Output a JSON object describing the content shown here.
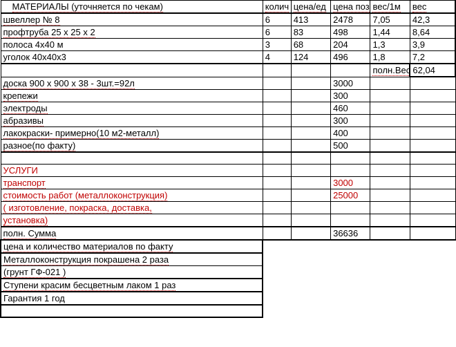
{
  "headers": {
    "materials": "МАТЕРИАЛЫ (уточняется по чекам)",
    "qty": "колич",
    "price": "цена/ед",
    "total": "цена поз-ц",
    "weight_1m": "вес/1м",
    "weight": "вес"
  },
  "materials": [
    {
      "name": "швеллер № 8",
      "qty": "6",
      "price": "413",
      "total": "2478",
      "w1": "7,05",
      "w": "42,3"
    },
    {
      "name": "профтруба 25 х 25 х 2",
      "qty": "6",
      "price": "83",
      "total": "498",
      "w1": "1,44",
      "w": "8,64"
    },
    {
      "name": "полоса          4х40    м",
      "qty": "3",
      "price": "68",
      "total": "204",
      "w1": "1,3",
      "w": "3,9"
    },
    {
      "name": "уголок   40х40х3",
      "qty": "4",
      "price": "124",
      "total": "496",
      "w1": "1,8",
      "w": "7,2"
    }
  ],
  "weight_summary": {
    "label": "полн.Вес",
    "value": "62,04"
  },
  "materials2": [
    {
      "name": "доска 900 х 900 х 38  - 3шт.=92л",
      "total": "3000"
    },
    {
      "name": "крепежи",
      "total": "300"
    },
    {
      "name": "электроды",
      "total": "460"
    },
    {
      "name": "абразивы",
      "total": "300"
    },
    {
      "name": "лакокраски- примерно(10 м2-металл)",
      "total": "400"
    },
    {
      "name": "разное(по факту)",
      "total": "500"
    }
  ],
  "services_header": " УСЛУГИ",
  "services": [
    {
      "name": "транспорт",
      "total": "3000"
    },
    {
      "name": "стоимость работ (металлоконструкция)",
      "total": "25000"
    },
    {
      "name": "( изготовление, покраска, доставка,",
      "total": ""
    },
    {
      "name": "установка)",
      "total": ""
    }
  ],
  "sum": {
    "label": "полн. Сумма",
    "value": "36636"
  },
  "note": "цена и количество материалов по факту",
  "notes": [
    "Металлоконструкция покрашена 2 раза",
    "(грунт ГФ-021 )",
    "Ступени красим бесцветным лаком 1 раз",
    "Гарантия 1 год"
  ]
}
